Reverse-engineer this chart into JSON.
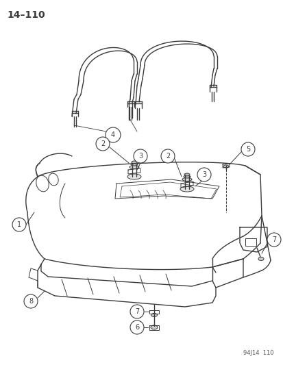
{
  "title": "14–110",
  "footer": "94J14  110",
  "bg_color": "#ffffff",
  "line_color": "#3a3a3a",
  "label_color": "#1a1a1a",
  "fig_width": 4.14,
  "fig_height": 5.33,
  "dpi": 100,
  "label_fontsize": 7.0,
  "label_circle_r": 0.022
}
